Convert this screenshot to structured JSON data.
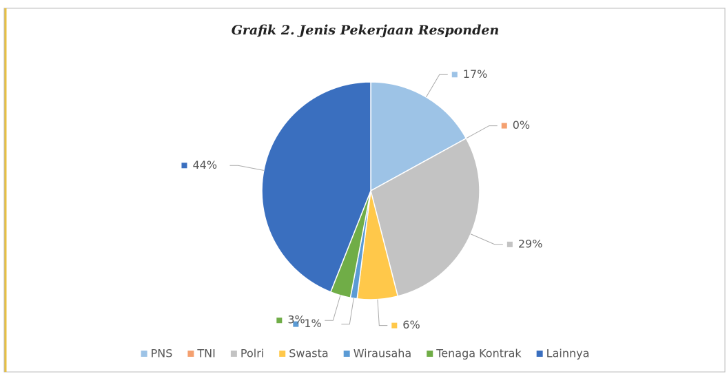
{
  "chart_data": {
    "type": "pie",
    "title": "Grafik 2. Jenis Pekerjaan Responden",
    "categories": [
      "PNS",
      "TNI",
      "Polri",
      "Swasta",
      "Wirausaha",
      "Tenaga Kontrak",
      "Lainnya"
    ],
    "values": [
      17,
      0,
      29,
      6,
      1,
      3,
      44
    ],
    "value_labels": [
      "17%",
      "0%",
      "29%",
      "6%",
      "1%",
      "3%",
      "44%"
    ],
    "colors": [
      "#9dc3e6",
      "#f4a070",
      "#c3c3c3",
      "#ffc84a",
      "#5b9bd5",
      "#70ad47",
      "#3a6fbf"
    ],
    "legend": "bottom"
  }
}
